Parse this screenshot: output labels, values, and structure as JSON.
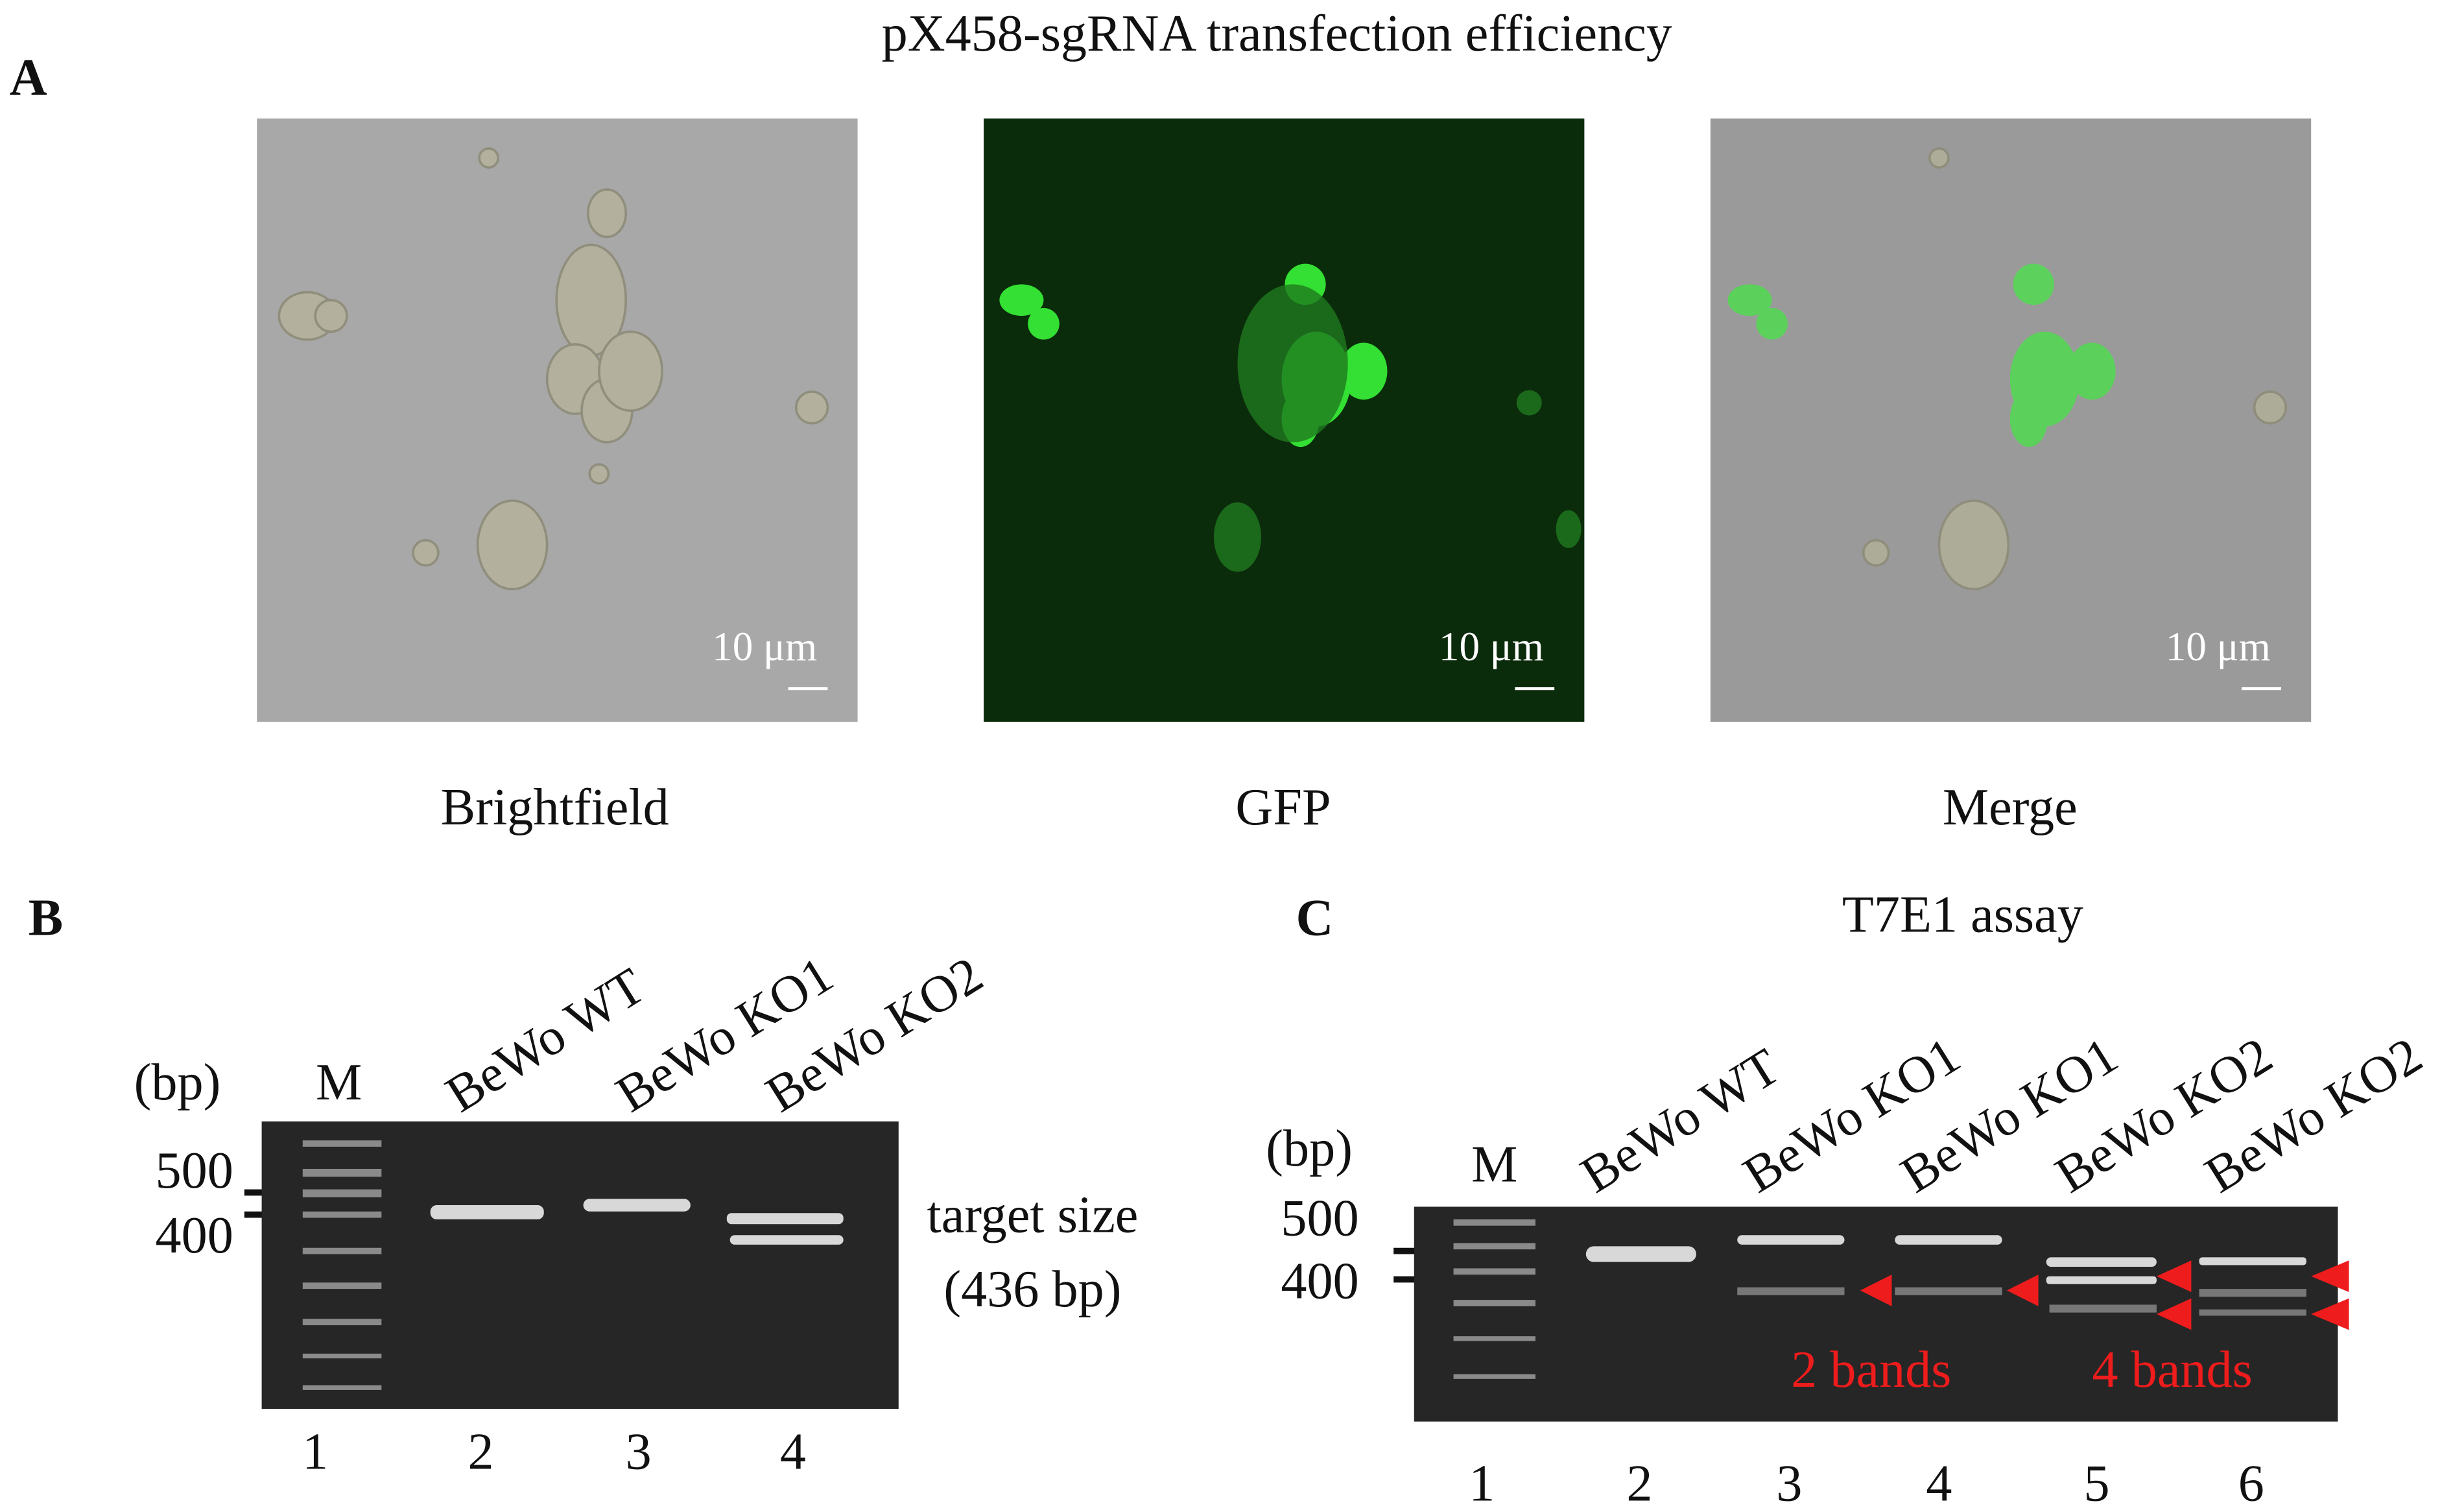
{
  "panel_a": {
    "letter": "A",
    "title": "pX458-sgRNA transfection efficiency",
    "images": [
      {
        "label": "Brightfield",
        "scale_bar": "10 μm"
      },
      {
        "label": "GFP",
        "scale_bar": "10 μm"
      },
      {
        "label": "Merge",
        "scale_bar": "10 μm"
      }
    ]
  },
  "panel_b": {
    "letter": "B",
    "unit": "(bp)",
    "marker_lane": "M",
    "lanes": [
      "BeWo WT",
      "BeWo KO1",
      "BeWo KO2"
    ],
    "size_labels": [
      "500",
      "400"
    ],
    "annotation": [
      "target size",
      "(436 bp)"
    ],
    "lane_numbers": [
      "1",
      "2",
      "3",
      "4"
    ]
  },
  "panel_c": {
    "letter": "C",
    "title": "T7E1 assay",
    "unit": "(bp)",
    "marker_lane": "M",
    "lanes": [
      "BeWo WT",
      "BeWo KO1",
      "BeWo KO1",
      "BeWo KO2",
      "BeWo KO2"
    ],
    "size_labels": [
      "500",
      "400"
    ],
    "annotations": [
      "2 bands",
      "4 bands"
    ],
    "lane_numbers": [
      "1",
      "2",
      "3",
      "4",
      "5",
      "6"
    ]
  }
}
